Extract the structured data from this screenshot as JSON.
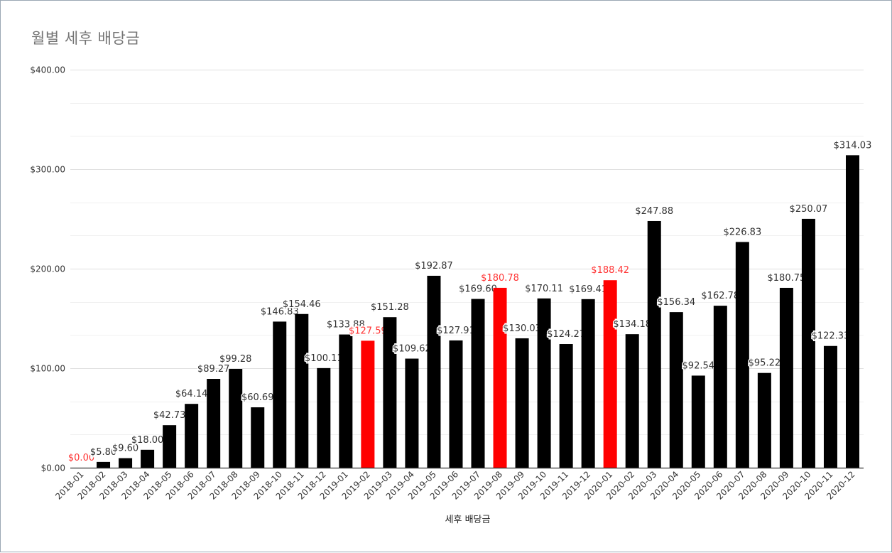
{
  "chart_data": {
    "type": "bar",
    "title": "월별 세후 배당금",
    "xlabel": "세후 배당금",
    "ylabel": "",
    "ylim": [
      0,
      400
    ],
    "y_ticks": [
      0,
      100,
      200,
      300,
      400
    ],
    "y_tick_labels": [
      "$0.00",
      "$100.00",
      "$200.00",
      "$300.00",
      "$400.00"
    ],
    "grid": true,
    "colors": {
      "default": "#000000",
      "highlight": "#ff0000",
      "highlight_label": "#ff3333",
      "label": "#333333",
      "grid": "#e0e0e0",
      "axis": "#333333"
    },
    "categories": [
      "2018-01",
      "2018-02",
      "2018-03",
      "2018-04",
      "2018-05",
      "2018-06",
      "2018-07",
      "2018-08",
      "2018-09",
      "2018-10",
      "2018-11",
      "2018-12",
      "2019-01",
      "2019-02",
      "2019-03",
      "2019-04",
      "2019-05",
      "2019-06",
      "2019-07",
      "2019-08",
      "2019-09",
      "2019-10",
      "2019-11",
      "2019-12",
      "2020-01",
      "2020-02",
      "2020-03",
      "2020-04",
      "2020-05",
      "2020-06",
      "2020-07",
      "2020-08",
      "2020-09",
      "2020-10",
      "2020-11",
      "2020-12"
    ],
    "values": [
      0.0,
      5.8,
      9.6,
      18.0,
      42.73,
      64.14,
      89.27,
      99.28,
      60.69,
      146.83,
      154.46,
      100.11,
      133.88,
      127.59,
      151.28,
      109.62,
      192.87,
      127.91,
      169.6,
      180.78,
      130.03,
      170.11,
      124.27,
      169.41,
      188.42,
      134.18,
      247.88,
      156.34,
      92.54,
      162.78,
      226.83,
      95.22,
      180.75,
      250.07,
      122.33,
      314.03
    ],
    "value_labels": [
      "$0.00",
      "$5.80",
      "$9.60",
      "$18.00",
      "$42.73",
      "$64.14",
      "$89.27",
      "$99.28",
      "$60.69",
      "$146.83",
      "$154.46",
      "$100.11",
      "$133.88",
      "$127.59",
      "$151.28",
      "$109.62",
      "$192.87",
      "$127.91",
      "$169.60",
      "$180.78",
      "$130.03",
      "$170.11",
      "$124.27",
      "$169.41",
      "$188.42",
      "$134.18",
      "$247.88",
      "$156.34",
      "$92.54",
      "$162.78",
      "$226.83",
      "$95.22",
      "$180.75",
      "$250.07",
      "$122.33",
      "$314.03"
    ],
    "highlighted": [
      "2018-01",
      "2019-02",
      "2019-08",
      "2020-01"
    ]
  }
}
